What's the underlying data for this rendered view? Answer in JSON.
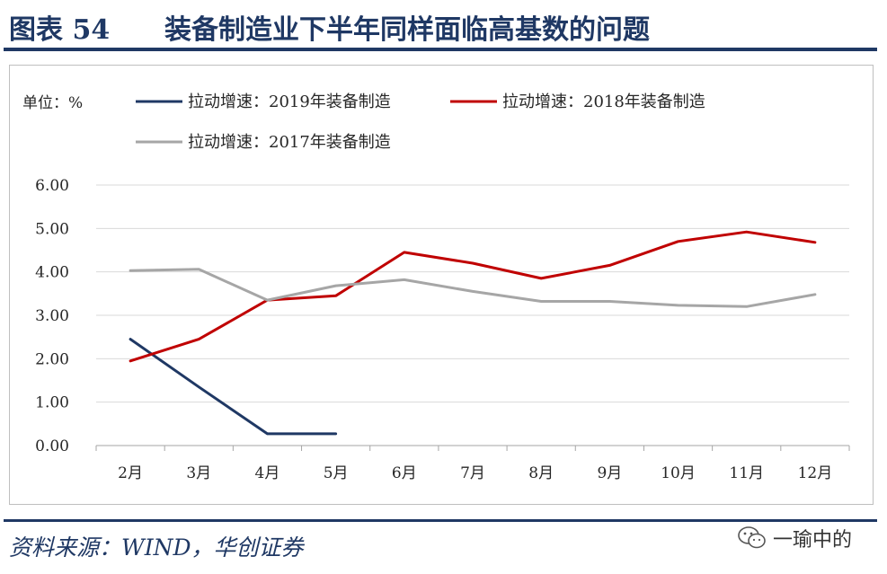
{
  "header": {
    "figure_number": "图表 54",
    "title": "装备制造业下半年同样面临高基数的问题"
  },
  "footer": {
    "source": "资料来源：WIND，华创证券",
    "watermark": "一瑜中的"
  },
  "icons": {
    "watermark": "wechat-icon"
  },
  "chart_data": {
    "type": "line",
    "unit_label": "单位：%",
    "categories": [
      "2月",
      "3月",
      "4月",
      "5月",
      "6月",
      "7月",
      "8月",
      "9月",
      "10月",
      "11月",
      "12月"
    ],
    "y_ticks": [
      "0.00",
      "1.00",
      "2.00",
      "3.00",
      "4.00",
      "5.00",
      "6.00"
    ],
    "ylim": [
      0,
      6
    ],
    "grid": {
      "horizontal": true,
      "vertical": false
    },
    "legend_position": "top-left",
    "series": [
      {
        "name": "拉动增速：2019年装备制造",
        "color": "#1f3864",
        "values": [
          2.45,
          1.35,
          0.27,
          0.27,
          null,
          null,
          null,
          null,
          null,
          null,
          null
        ]
      },
      {
        "name": "拉动增速：2018年装备制造",
        "color": "#c00000",
        "values": [
          1.95,
          2.45,
          3.35,
          3.45,
          4.45,
          4.2,
          3.85,
          4.15,
          4.7,
          4.92,
          4.68
        ]
      },
      {
        "name": "拉动增速：2017年装备制造",
        "color": "#a6a6a6",
        "values": [
          4.03,
          4.06,
          3.35,
          3.68,
          3.82,
          3.55,
          3.32,
          3.32,
          3.23,
          3.2,
          3.48
        ]
      }
    ]
  }
}
